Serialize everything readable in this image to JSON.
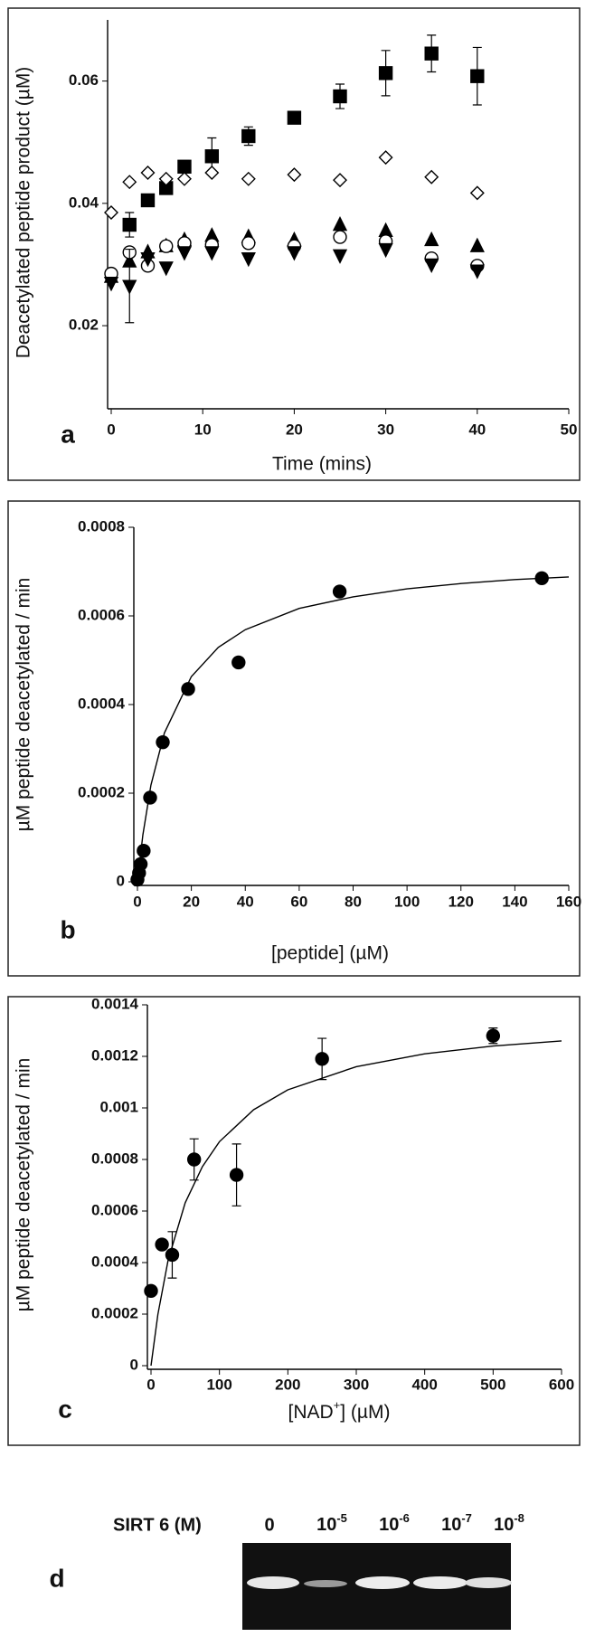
{
  "chart_data": [
    {
      "type": "scatter",
      "panel": "a",
      "x_label": "Time (mins)",
      "y_label": "Deacetylated peptide product (µM)",
      "xlim": [
        0,
        50
      ],
      "ylim": [
        0.007,
        0.07
      ],
      "xticks": [
        0,
        10,
        20,
        30,
        40,
        50
      ],
      "yticks": [
        0.02,
        0.04,
        0.06
      ],
      "series": [
        {
          "marker": "square",
          "filled": true,
          "x": [
            2,
            4,
            6,
            8,
            11,
            15,
            20,
            25,
            30,
            35,
            40
          ],
          "values": [
            0.0365,
            0.0405,
            0.0425,
            0.046,
            0.0477,
            0.051,
            0.054,
            0.0575,
            0.0613,
            0.0645,
            0.0608
          ],
          "errors": [
            0.002,
            0.001,
            0.001,
            0.001,
            0.003,
            0.0015,
            0.0005,
            0.002,
            0.0037,
            0.003,
            0.0047
          ]
        },
        {
          "marker": "diamond",
          "filled": false,
          "x": [
            0,
            2,
            4,
            6,
            8,
            11,
            15,
            20,
            25,
            30,
            35,
            40
          ],
          "values": [
            0.0385,
            0.0435,
            0.045,
            0.044,
            0.044,
            0.045,
            0.044,
            0.0447,
            0.0438,
            0.0475,
            0.0443,
            0.0417
          ]
        },
        {
          "marker": "triangle-up",
          "filled": true,
          "x": [
            0,
            2,
            4,
            6,
            8,
            11,
            15,
            20,
            25,
            30,
            35,
            40
          ],
          "values": [
            0.028,
            0.0305,
            0.032,
            0.033,
            0.034,
            0.0347,
            0.0345,
            0.034,
            0.0365,
            0.0355,
            0.034,
            0.033
          ]
        },
        {
          "marker": "circle",
          "filled": false,
          "x": [
            0,
            2,
            4,
            6,
            8,
            11,
            15,
            20,
            25,
            30,
            35,
            40
          ],
          "values": [
            0.0285,
            0.032,
            0.0298,
            0.033,
            0.0335,
            0.0332,
            0.0335,
            0.033,
            0.0345,
            0.0338,
            0.031,
            0.0298
          ]
        },
        {
          "marker": "triangle-down",
          "filled": true,
          "x": [
            0,
            2,
            4,
            6,
            8,
            11,
            15,
            20,
            25,
            30,
            35,
            40
          ],
          "values": [
            0.027,
            0.0265,
            0.031,
            0.0295,
            0.032,
            0.032,
            0.031,
            0.032,
            0.0315,
            0.0325,
            0.03,
            0.029
          ],
          "errors": [
            null,
            0.006,
            null,
            null,
            null,
            null,
            null,
            null,
            null,
            null,
            null,
            null
          ]
        }
      ]
    },
    {
      "type": "scatter",
      "panel": "b",
      "x_label": "[peptide] (µM)",
      "y_label": "µM peptide deacetylated / min",
      "xlim": [
        0,
        160
      ],
      "ylim": [
        0,
        0.0008
      ],
      "xticks": [
        0,
        20,
        40,
        60,
        80,
        100,
        120,
        140,
        160
      ],
      "yticks": [
        0,
        0.0002,
        0.0004,
        0.0006,
        0.0008
      ],
      "series": [
        {
          "marker": "circle",
          "filled": true,
          "x": [
            0,
            0.6,
            1.2,
            2.3,
            4.7,
            9.4,
            18.8,
            37.5,
            75,
            150
          ],
          "values": [
            5e-06,
            2e-05,
            4e-05,
            7e-05,
            0.00019,
            0.000315,
            0.000435,
            0.000495,
            0.000655,
            0.000685
          ]
        }
      ],
      "fit": {
        "x": [
          0,
          2,
          5,
          10,
          20,
          30,
          40,
          60,
          80,
          100,
          120,
          140,
          160
        ],
        "values": [
          0,
          0.000106,
          0.000218,
          0.000336,
          0.000463,
          0.000529,
          0.000569,
          0.000617,
          0.000643,
          0.000661,
          0.000673,
          0.000682,
          0.000688
        ]
      }
    },
    {
      "type": "scatter",
      "panel": "c",
      "x_label": [
        {
          "text": "[NAD"
        },
        {
          "text": "+",
          "sup": true
        },
        {
          "text": "] (µM)"
        }
      ],
      "y_label": "µM peptide deacetylated / min",
      "xlim": [
        0,
        600
      ],
      "ylim": [
        0,
        0.0014
      ],
      "xticks": [
        0,
        100,
        200,
        300,
        400,
        500,
        600
      ],
      "yticks": [
        0,
        0.0002,
        0.0004,
        0.0006,
        0.0008,
        0.001,
        0.0012,
        0.0014
      ],
      "series": [
        {
          "marker": "circle",
          "filled": true,
          "x": [
            0,
            16,
            31,
            63,
            125,
            250,
            500
          ],
          "values": [
            0.00029,
            0.00047,
            0.00043,
            0.0008,
            0.00074,
            0.00119,
            0.00128
          ],
          "errors": [
            null,
            null,
            9e-05,
            8e-05,
            0.00012,
            8e-05,
            3e-05
          ]
        }
      ],
      "fit": {
        "x": [
          0,
          10,
          25,
          50,
          75,
          100,
          150,
          200,
          300,
          400,
          500,
          600
        ],
        "values": [
          0,
          0.000199,
          0.000409,
          0.000632,
          0.000772,
          0.000869,
          0.000993,
          0.00107,
          0.00116,
          0.00121,
          0.00124,
          0.00126
        ]
      }
    }
  ],
  "gel": {
    "panel": "d",
    "label": "SIRT 6 (M)",
    "lanes": [
      "0",
      {
        "base": "10",
        "exp": "-5"
      },
      {
        "base": "10",
        "exp": "-6"
      },
      {
        "base": "10",
        "exp": "-7"
      },
      {
        "base": "10",
        "exp": "-8"
      }
    ]
  }
}
